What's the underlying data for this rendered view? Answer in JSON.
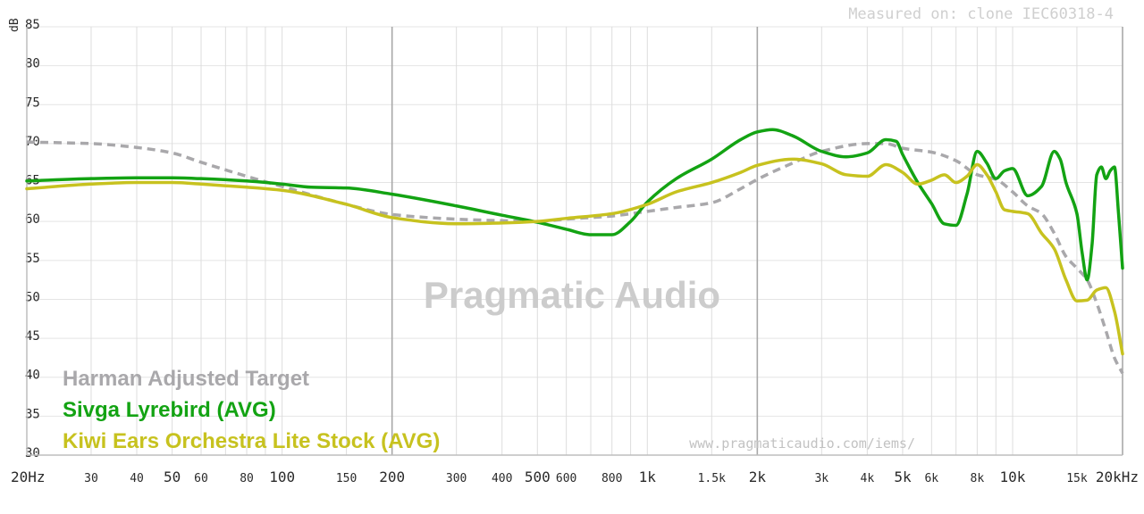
{
  "chart_data": {
    "type": "line",
    "measured_on": "Measured on: clone IEC60318-4",
    "watermark": "Pragmatic Audio",
    "url": "www.pragmaticaudio.com/iems/",
    "y_unit": "dB",
    "ylim": [
      30,
      85
    ],
    "xlim": [
      20,
      20000
    ],
    "x_scale": "log",
    "y_ticks": [
      85,
      80,
      75,
      70,
      65,
      60,
      55,
      50,
      45,
      40,
      35,
      30
    ],
    "x_ticks": [
      {
        "v": 20,
        "label": "20Hz",
        "major": true
      },
      {
        "v": 30,
        "label": "30",
        "major": false
      },
      {
        "v": 40,
        "label": "40",
        "major": false
      },
      {
        "v": 50,
        "label": "50",
        "major": true
      },
      {
        "v": 60,
        "label": "60",
        "major": false
      },
      {
        "v": 80,
        "label": "80",
        "major": false
      },
      {
        "v": 100,
        "label": "100",
        "major": true
      },
      {
        "v": 150,
        "label": "150",
        "major": false
      },
      {
        "v": 200,
        "label": "200",
        "major": true
      },
      {
        "v": 300,
        "label": "300",
        "major": false
      },
      {
        "v": 400,
        "label": "400",
        "major": false
      },
      {
        "v": 500,
        "label": "500",
        "major": true
      },
      {
        "v": 600,
        "label": "600",
        "major": false
      },
      {
        "v": 800,
        "label": "800",
        "major": false
      },
      {
        "v": 1000,
        "label": "1k",
        "major": true
      },
      {
        "v": 1500,
        "label": "1.5k",
        "major": false
      },
      {
        "v": 2000,
        "label": "2k",
        "major": true
      },
      {
        "v": 3000,
        "label": "3k",
        "major": false
      },
      {
        "v": 4000,
        "label": "4k",
        "major": false
      },
      {
        "v": 5000,
        "label": "5k",
        "major": true
      },
      {
        "v": 6000,
        "label": "6k",
        "major": false
      },
      {
        "v": 8000,
        "label": "8k",
        "major": false
      },
      {
        "v": 10000,
        "label": "10k",
        "major": true
      },
      {
        "v": 15000,
        "label": "15k",
        "major": false
      },
      {
        "v": 20000,
        "label": "20kHz",
        "major": true
      }
    ],
    "grid_lines": [
      20,
      30,
      40,
      50,
      60,
      70,
      80,
      90,
      100,
      150,
      200,
      300,
      400,
      500,
      600,
      700,
      800,
      900,
      1000,
      1500,
      2000,
      3000,
      4000,
      5000,
      6000,
      7000,
      8000,
      9000,
      10000,
      15000,
      20000
    ],
    "dark_grid_lines": [
      200,
      2000,
      20000
    ],
    "series": [
      {
        "name": "Harman Adjusted Target",
        "color": "#a9a8ab",
        "dashed": true,
        "points": [
          [
            20,
            70.2
          ],
          [
            30,
            70.0
          ],
          [
            40,
            69.5
          ],
          [
            50,
            68.8
          ],
          [
            60,
            67.6
          ],
          [
            80,
            65.8
          ],
          [
            100,
            64.5
          ],
          [
            150,
            62.2
          ],
          [
            200,
            60.9
          ],
          [
            300,
            60.3
          ],
          [
            400,
            60.1
          ],
          [
            500,
            60.0
          ],
          [
            600,
            60.3
          ],
          [
            800,
            60.7
          ],
          [
            1000,
            61.3
          ],
          [
            1200,
            61.8
          ],
          [
            1500,
            62.4
          ],
          [
            1800,
            64.2
          ],
          [
            2000,
            65.4
          ],
          [
            2500,
            67.5
          ],
          [
            3000,
            69.0
          ],
          [
            4000,
            70.0
          ],
          [
            4500,
            70.0
          ],
          [
            5000,
            69.4
          ],
          [
            6000,
            68.9
          ],
          [
            7000,
            67.8
          ],
          [
            8000,
            66.0
          ],
          [
            9000,
            65.4
          ],
          [
            10000,
            63.8
          ],
          [
            11000,
            62.0
          ],
          [
            12000,
            61.0
          ],
          [
            13000,
            58.5
          ],
          [
            14000,
            55.5
          ],
          [
            15000,
            54.0
          ],
          [
            16000,
            52.5
          ],
          [
            17000,
            49.5
          ],
          [
            18000,
            46.0
          ],
          [
            19000,
            42.5
          ],
          [
            20000,
            40.5
          ]
        ]
      },
      {
        "name": "Sivga Lyrebird (AVG)",
        "color": "#13a313",
        "dashed": false,
        "points": [
          [
            20,
            65.2
          ],
          [
            30,
            65.5
          ],
          [
            40,
            65.6
          ],
          [
            50,
            65.6
          ],
          [
            60,
            65.5
          ],
          [
            80,
            65.2
          ],
          [
            100,
            64.8
          ],
          [
            120,
            64.4
          ],
          [
            150,
            64.3
          ],
          [
            200,
            63.5
          ],
          [
            300,
            62.0
          ],
          [
            400,
            60.8
          ],
          [
            500,
            59.9
          ],
          [
            600,
            59.0
          ],
          [
            700,
            58.3
          ],
          [
            800,
            58.3
          ],
          [
            900,
            60.0
          ],
          [
            1000,
            62.5
          ],
          [
            1200,
            65.5
          ],
          [
            1500,
            68.0
          ],
          [
            1800,
            70.5
          ],
          [
            2000,
            71.5
          ],
          [
            2200,
            71.8
          ],
          [
            2500,
            71.0
          ],
          [
            3000,
            69.0
          ],
          [
            3500,
            68.3
          ],
          [
            4000,
            68.8
          ],
          [
            4500,
            70.5
          ],
          [
            4800,
            70.3
          ],
          [
            5000,
            68.6
          ],
          [
            5500,
            65.0
          ],
          [
            6000,
            62.3
          ],
          [
            6500,
            59.7
          ],
          [
            7000,
            59.5
          ],
          [
            7500,
            63.5
          ],
          [
            8000,
            69.0
          ],
          [
            8500,
            67.5
          ],
          [
            9000,
            65.5
          ],
          [
            9500,
            66.5
          ],
          [
            10000,
            66.8
          ],
          [
            11000,
            63.3
          ],
          [
            12000,
            64.5
          ],
          [
            13000,
            69.0
          ],
          [
            13500,
            68.0
          ],
          [
            14000,
            65.0
          ],
          [
            15000,
            61.0
          ],
          [
            15500,
            56.0
          ],
          [
            16000,
            52.5
          ],
          [
            16500,
            57.0
          ],
          [
            17000,
            66.0
          ],
          [
            17500,
            67.0
          ],
          [
            18000,
            65.5
          ],
          [
            18500,
            66.5
          ],
          [
            19000,
            67.0
          ],
          [
            19500,
            61.0
          ],
          [
            20000,
            54.0
          ]
        ]
      },
      {
        "name": "Kiwi Ears Orchestra Lite Stock (AVG)",
        "color": "#c7c21f",
        "dashed": false,
        "points": [
          [
            20,
            64.2
          ],
          [
            30,
            64.8
          ],
          [
            40,
            65.0
          ],
          [
            50,
            65.0
          ],
          [
            60,
            64.8
          ],
          [
            80,
            64.4
          ],
          [
            100,
            64.0
          ],
          [
            150,
            62.2
          ],
          [
            200,
            60.5
          ],
          [
            300,
            59.7
          ],
          [
            400,
            59.8
          ],
          [
            500,
            60.0
          ],
          [
            600,
            60.4
          ],
          [
            800,
            61.0
          ],
          [
            1000,
            62.2
          ],
          [
            1200,
            63.8
          ],
          [
            1500,
            65.0
          ],
          [
            1800,
            66.3
          ],
          [
            2000,
            67.2
          ],
          [
            2500,
            68.0
          ],
          [
            3000,
            67.4
          ],
          [
            3500,
            66.0
          ],
          [
            4000,
            65.8
          ],
          [
            4500,
            67.3
          ],
          [
            5000,
            66.3
          ],
          [
            5500,
            64.8
          ],
          [
            6000,
            65.3
          ],
          [
            6500,
            66.0
          ],
          [
            7000,
            65.0
          ],
          [
            7500,
            65.8
          ],
          [
            8000,
            67.3
          ],
          [
            8500,
            66.0
          ],
          [
            9000,
            63.8
          ],
          [
            9500,
            61.5
          ],
          [
            10000,
            61.3
          ],
          [
            11000,
            61.0
          ],
          [
            12000,
            58.5
          ],
          [
            13000,
            56.5
          ],
          [
            14000,
            52.5
          ],
          [
            15000,
            49.8
          ],
          [
            16000,
            49.9
          ],
          [
            17000,
            51.2
          ],
          [
            18000,
            51.5
          ],
          [
            19000,
            48.5
          ],
          [
            20000,
            43.0
          ]
        ]
      }
    ]
  }
}
